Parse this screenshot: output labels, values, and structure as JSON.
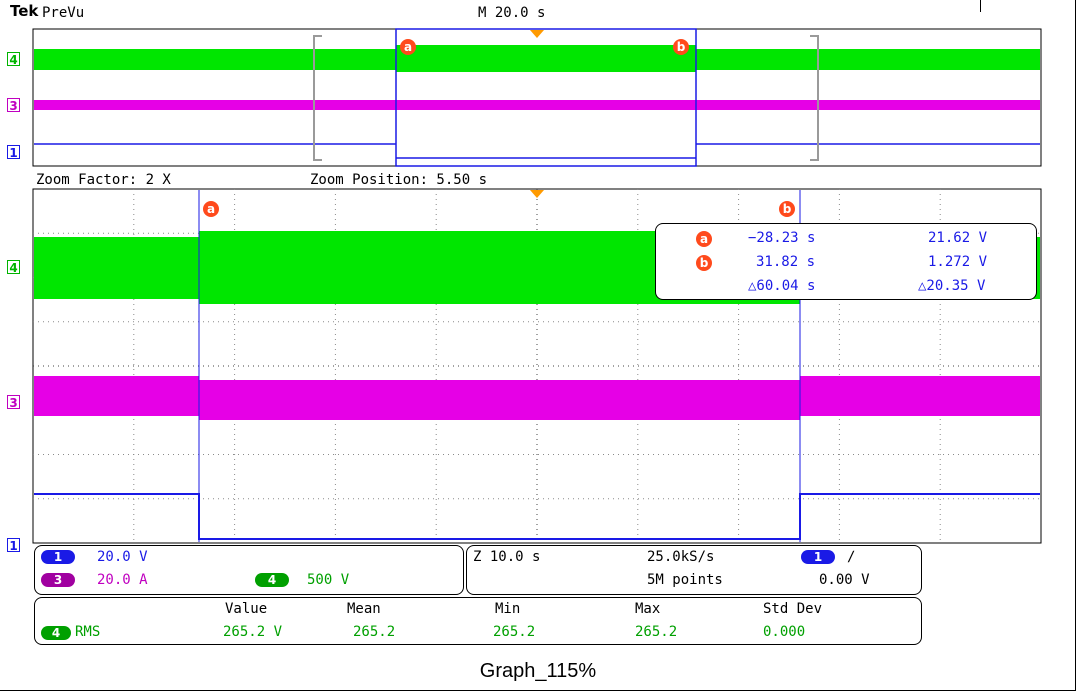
{
  "header": {
    "brand": "Tek",
    "mode": "PreVu",
    "timebase": "M 20.0 s"
  },
  "zoom": {
    "factor_label": "Zoom Factor: 2 X",
    "position_label": "Zoom Position: 5.50 s"
  },
  "channels": [
    {
      "id": "4",
      "color": "#00e600"
    },
    {
      "id": "3",
      "color": "#e600e6"
    },
    {
      "id": "1",
      "color": "#1a1ae6"
    }
  ],
  "cursors": {
    "a_label": "a",
    "b_label": "b",
    "readout": {
      "a_time": "−28.23 s",
      "a_value": "21.62 V",
      "b_time": "31.82 s",
      "b_value": "1.272 V",
      "delta_time": "△60.04 s",
      "delta_value": "△20.35 V"
    }
  },
  "channel_settings": {
    "ch1_num": "1",
    "ch1_scale": "20.0 V",
    "ch3_num": "3",
    "ch3_scale": "20.0 A",
    "ch4_num": "4",
    "ch4_scale": "500 V"
  },
  "acquisition": {
    "zoom_scale": "Z 10.0 s",
    "sample_rate": "25.0kS/s",
    "record_length": "5M points",
    "trigger_source": "1",
    "trigger_slope": "∕",
    "trigger_level": "0.00 V"
  },
  "measurements": {
    "headers": [
      "Value",
      "Mean",
      "Min",
      "Max",
      "Std Dev"
    ],
    "row": {
      "source": "4",
      "type": "RMS",
      "values": [
        "265.2 V",
        "265.2",
        "265.2",
        "265.2",
        "0.000"
      ]
    }
  },
  "caption": "Graph_115%",
  "colors": {
    "ch1": "#1a1ae6",
    "ch3": "#e600e6",
    "ch4": "#00e600",
    "cursor": "#ff4a1c",
    "trigger": "#ff9a00"
  }
}
